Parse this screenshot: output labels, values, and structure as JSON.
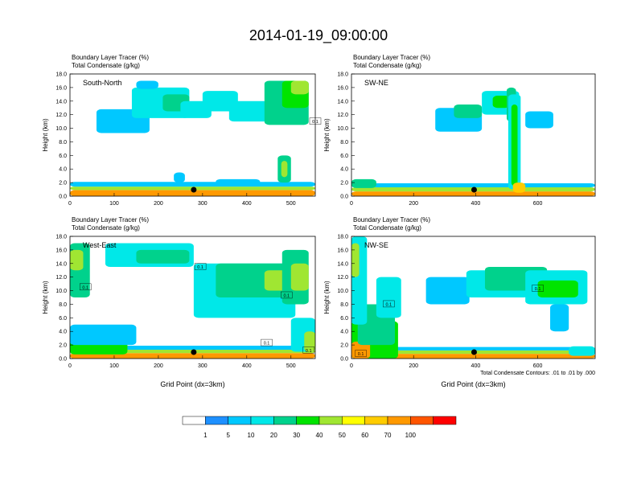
{
  "title": "2014-01-19_09:00:00",
  "chart_data": [
    {
      "type": "heatmap",
      "panel": "South-North",
      "header": [
        "Boundary Layer Tracer   (%)",
        "Total Condensate   (g/kg)"
      ],
      "ylabel": "Height (km)",
      "xlabel": "",
      "xlim": [
        0,
        555
      ],
      "ylim": [
        0,
        18
      ],
      "xticks": [
        0,
        100,
        200,
        300,
        400,
        500
      ],
      "yticks": [
        0.0,
        2.0,
        4.0,
        6.0,
        8.0,
        10.0,
        12.0,
        14.0,
        16.0,
        18.0
      ],
      "marker_x": 280,
      "contour_labels": [
        {
          "x": 555,
          "y": 11,
          "text": "0.1"
        }
      ],
      "blobs": [
        {
          "x": 0,
          "w": 555,
          "y": 0,
          "h": 0.9,
          "v": 75
        },
        {
          "x": 0,
          "w": 555,
          "y": 0.9,
          "h": 0.5,
          "v": 45
        },
        {
          "x": 0,
          "w": 555,
          "y": 1.4,
          "h": 0.7,
          "v": 8
        },
        {
          "x": 60,
          "w": 120,
          "y": 9.3,
          "h": 3.5,
          "v": 9
        },
        {
          "x": 140,
          "w": 130,
          "y": 11.5,
          "h": 4.5,
          "v": 12
        },
        {
          "x": 210,
          "w": 60,
          "y": 12.5,
          "h": 2.5,
          "v": 25
        },
        {
          "x": 250,
          "w": 70,
          "y": 11.5,
          "h": 2.5,
          "v": 10
        },
        {
          "x": 300,
          "w": 80,
          "y": 12.5,
          "h": 3,
          "v": 13
        },
        {
          "x": 360,
          "w": 90,
          "y": 11,
          "h": 3,
          "v": 12
        },
        {
          "x": 440,
          "w": 100,
          "y": 10.5,
          "h": 6.5,
          "v": 20
        },
        {
          "x": 480,
          "w": 60,
          "y": 13,
          "h": 4,
          "v": 38
        },
        {
          "x": 500,
          "w": 40,
          "y": 15,
          "h": 2,
          "v": 48
        },
        {
          "x": 470,
          "w": 30,
          "y": 2,
          "h": 4,
          "v": 25
        },
        {
          "x": 478,
          "w": 14,
          "y": 2.8,
          "h": 2.4,
          "v": 48
        },
        {
          "x": 330,
          "w": 100,
          "y": 1.8,
          "h": 0.7,
          "v": 8
        },
        {
          "x": 150,
          "w": 50,
          "y": 15.8,
          "h": 1.2,
          "v": 8
        },
        {
          "x": 235,
          "w": 25,
          "y": 2,
          "h": 1.5,
          "v": 8
        }
      ]
    },
    {
      "type": "heatmap",
      "panel": "SW-NE",
      "header": [
        "Boundary Layer Tracer   (%)",
        "Total Condensate   (g/kg)"
      ],
      "ylabel": "Height (km)",
      "xlabel": "",
      "xlim": [
        0,
        785
      ],
      "ylim": [
        0,
        18
      ],
      "xticks": [
        0,
        200,
        400,
        600
      ],
      "yticks": [
        0.0,
        2.0,
        4.0,
        6.0,
        8.0,
        10.0,
        12.0,
        14.0,
        16.0,
        18.0
      ],
      "marker_x": 395,
      "contour_labels": [],
      "blobs": [
        {
          "x": 0,
          "w": 785,
          "y": 0,
          "h": 0.7,
          "v": 75
        },
        {
          "x": 0,
          "w": 785,
          "y": 0.7,
          "h": 0.6,
          "v": 45
        },
        {
          "x": 0,
          "w": 785,
          "y": 1.3,
          "h": 0.6,
          "v": 8
        },
        {
          "x": 0,
          "w": 80,
          "y": 1.2,
          "h": 1.3,
          "v": 25
        },
        {
          "x": 270,
          "w": 150,
          "y": 9.5,
          "h": 3.5,
          "v": 9
        },
        {
          "x": 330,
          "w": 90,
          "y": 11.5,
          "h": 2,
          "v": 20
        },
        {
          "x": 420,
          "w": 120,
          "y": 12,
          "h": 3.5,
          "v": 15
        },
        {
          "x": 455,
          "w": 55,
          "y": 13,
          "h": 1.8,
          "v": 32
        },
        {
          "x": 500,
          "w": 30,
          "y": 11,
          "h": 5,
          "v": 22
        },
        {
          "x": 505,
          "w": 40,
          "y": 1,
          "h": 14,
          "v": 18
        },
        {
          "x": 515,
          "w": 20,
          "y": 1.5,
          "h": 12,
          "v": 38
        },
        {
          "x": 560,
          "w": 90,
          "y": 10,
          "h": 2.5,
          "v": 9
        },
        {
          "x": 520,
          "w": 40,
          "y": 0.5,
          "h": 1.5,
          "v": 60
        }
      ]
    },
    {
      "type": "heatmap",
      "panel": "West-East",
      "header": [
        "Boundary Layer Tracer   (%)",
        "Total Condensate   (g/kg)"
      ],
      "ylabel": "Height (km)",
      "xlabel": "Grid Point (dx=3km)",
      "xlim": [
        0,
        555
      ],
      "ylim": [
        0,
        18
      ],
      "xticks": [
        0,
        100,
        200,
        300,
        400,
        500
      ],
      "yticks": [
        0.0,
        2.0,
        4.0,
        6.0,
        8.0,
        10.0,
        12.0,
        14.0,
        16.0,
        18.0
      ],
      "marker_x": 280,
      "contour_labels": [
        {
          "x": 35,
          "y": 10.5,
          "text": "0.1"
        },
        {
          "x": 295,
          "y": 13.5,
          "text": "0.1"
        },
        {
          "x": 490,
          "y": 9.3,
          "text": "0.1"
        },
        {
          "x": 445,
          "y": 2.3,
          "text": "0.1"
        },
        {
          "x": 540,
          "y": 1.2,
          "text": "0.1"
        }
      ],
      "blobs": [
        {
          "x": 0,
          "w": 555,
          "y": 0,
          "h": 0.8,
          "v": 75
        },
        {
          "x": 0,
          "w": 555,
          "y": 0.8,
          "h": 0.5,
          "v": 45
        },
        {
          "x": 0,
          "w": 555,
          "y": 1.3,
          "h": 0.6,
          "v": 8
        },
        {
          "x": 0,
          "w": 130,
          "y": 0.6,
          "h": 2,
          "v": 30
        },
        {
          "x": 0,
          "w": 45,
          "y": 9,
          "h": 8,
          "v": 20
        },
        {
          "x": 0,
          "w": 30,
          "y": 13,
          "h": 3,
          "v": 45
        },
        {
          "x": 0,
          "w": 150,
          "y": 2,
          "h": 3,
          "v": 9
        },
        {
          "x": 80,
          "w": 200,
          "y": 13.5,
          "h": 3.5,
          "v": 14
        },
        {
          "x": 150,
          "w": 120,
          "y": 14,
          "h": 2,
          "v": 28
        },
        {
          "x": 280,
          "w": 230,
          "y": 6,
          "h": 8,
          "v": 12
        },
        {
          "x": 330,
          "w": 160,
          "y": 9,
          "h": 5,
          "v": 28
        },
        {
          "x": 440,
          "w": 60,
          "y": 10,
          "h": 3,
          "v": 45
        },
        {
          "x": 480,
          "w": 60,
          "y": 8,
          "h": 8,
          "v": 20
        },
        {
          "x": 500,
          "w": 40,
          "y": 10,
          "h": 4,
          "v": 40
        },
        {
          "x": 500,
          "w": 55,
          "y": 1,
          "h": 5,
          "v": 14
        },
        {
          "x": 530,
          "w": 25,
          "y": 1,
          "h": 3,
          "v": 45
        }
      ]
    },
    {
      "type": "heatmap",
      "panel": "NW-SE",
      "header": [
        "Boundary Layer Tracer   (%)",
        "Total Condensate   (g/kg)"
      ],
      "ylabel": "Height (km)",
      "xlabel": "Grid Point (dx=3km)",
      "xlim": [
        0,
        785
      ],
      "ylim": [
        0,
        18
      ],
      "xticks": [
        0,
        200,
        400,
        600
      ],
      "yticks": [
        0.0,
        2.0,
        4.0,
        6.0,
        8.0,
        10.0,
        12.0,
        14.0,
        16.0,
        18.0
      ],
      "marker_x": 395,
      "annotation": "Total Condensate Contours: .01 to .01 by .000",
      "contour_labels": [
        {
          "x": 120,
          "y": 8,
          "text": "0.1"
        },
        {
          "x": 600,
          "y": 10.3,
          "text": "0.1"
        },
        {
          "x": 30,
          "y": 0.7,
          "text": "0.1"
        }
      ],
      "blobs": [
        {
          "x": 0,
          "w": 785,
          "y": 0,
          "h": 0.7,
          "v": 75
        },
        {
          "x": 0,
          "w": 785,
          "y": 0.7,
          "h": 0.5,
          "v": 45
        },
        {
          "x": 0,
          "w": 785,
          "y": 1.2,
          "h": 0.5,
          "v": 8
        },
        {
          "x": 0,
          "w": 150,
          "y": 0,
          "h": 5.5,
          "v": 35
        },
        {
          "x": 0,
          "w": 60,
          "y": 0,
          "h": 2.5,
          "v": 75
        },
        {
          "x": 20,
          "w": 120,
          "y": 2,
          "h": 6,
          "v": 25
        },
        {
          "x": 0,
          "w": 50,
          "y": 5,
          "h": 13,
          "v": 14
        },
        {
          "x": 0,
          "w": 25,
          "y": 12,
          "h": 5,
          "v": 40
        },
        {
          "x": 80,
          "w": 80,
          "y": 6,
          "h": 6,
          "v": 12
        },
        {
          "x": 240,
          "w": 140,
          "y": 8,
          "h": 4,
          "v": 9
        },
        {
          "x": 370,
          "w": 200,
          "y": 9,
          "h": 4,
          "v": 12
        },
        {
          "x": 430,
          "w": 200,
          "y": 10,
          "h": 3.5,
          "v": 25
        },
        {
          "x": 560,
          "w": 200,
          "y": 8,
          "h": 5,
          "v": 15
        },
        {
          "x": 600,
          "w": 130,
          "y": 9,
          "h": 2.5,
          "v": 32
        },
        {
          "x": 640,
          "w": 60,
          "y": 4,
          "h": 4,
          "v": 9
        },
        {
          "x": 700,
          "w": 85,
          "y": 0.4,
          "h": 1.4,
          "v": 18
        }
      ]
    }
  ],
  "colorbar": {
    "levels": [
      "1",
      "5",
      "10",
      "20",
      "30",
      "40",
      "50",
      "60",
      "70",
      "100"
    ],
    "colors": [
      "#ffffff",
      "#1e90ff",
      "#00c8ff",
      "#00e8e8",
      "#00d28c",
      "#00e400",
      "#a0e632",
      "#ffff00",
      "#ffcc00",
      "#ff9900",
      "#ff5500",
      "#ff0000"
    ]
  }
}
